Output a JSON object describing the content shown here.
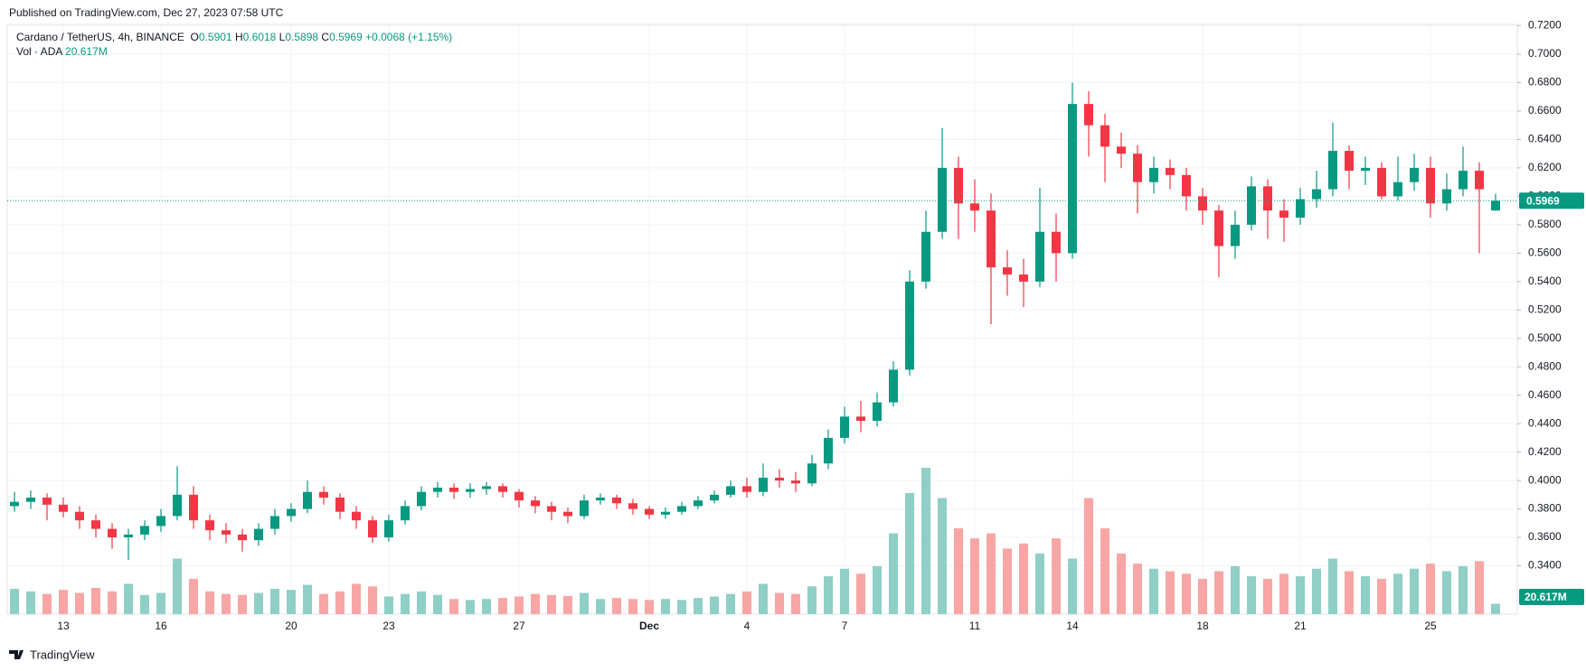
{
  "published": "Published on TradingView.com, Dec 27, 2023 07:58 UTC",
  "footer": {
    "brand": "TradingView"
  },
  "chart_data": {
    "type": "candlestick",
    "title": "Cardano / TetherUS, 4h, BINANCE",
    "legend": {
      "o": "O",
      "open": "0.5901",
      "h": "H",
      "high": "0.6018",
      "l": "L",
      "low": "0.5898",
      "c": "C",
      "close": "0.5969",
      "change": "+0.0068 (+1.15%)",
      "vol_title": "Vol · ADA",
      "vol": "20.617M"
    },
    "up_color": "#089981",
    "down_color": "#f23645",
    "up_volume_color": "#8fcfc6",
    "down_volume_color": "#f7a6a5",
    "grid": true,
    "ylim": [
      0.306,
      0.721
    ],
    "yticks": [
      {
        "value": 0.34,
        "label": "0.3400"
      },
      {
        "value": 0.36,
        "label": "0.3600"
      },
      {
        "value": 0.38,
        "label": "0.3800"
      },
      {
        "value": 0.4,
        "label": "0.4000"
      },
      {
        "value": 0.42,
        "label": "0.4200"
      },
      {
        "value": 0.44,
        "label": "0.4400"
      },
      {
        "value": 0.46,
        "label": "0.4600"
      },
      {
        "value": 0.48,
        "label": "0.4800"
      },
      {
        "value": 0.5,
        "label": "0.5000"
      },
      {
        "value": 0.52,
        "label": "0.5200"
      },
      {
        "value": 0.54,
        "label": "0.5400"
      },
      {
        "value": 0.56,
        "label": "0.5600"
      },
      {
        "value": 0.58,
        "label": "0.5800"
      },
      {
        "value": 0.6,
        "label": "0.6000"
      },
      {
        "value": 0.62,
        "label": "0.6200"
      },
      {
        "value": 0.64,
        "label": "0.6400"
      },
      {
        "value": 0.66,
        "label": "0.6600"
      },
      {
        "value": 0.68,
        "label": "0.6800"
      },
      {
        "value": 0.7,
        "label": "0.7000"
      },
      {
        "value": 0.72,
        "label": "0.7200"
      }
    ],
    "categories": [
      null,
      null,
      null,
      "13",
      null,
      null,
      null,
      null,
      null,
      "16",
      null,
      null,
      null,
      null,
      null,
      null,
      null,
      "20",
      null,
      null,
      null,
      null,
      null,
      "23",
      null,
      null,
      null,
      null,
      null,
      null,
      null,
      "27",
      null,
      null,
      null,
      null,
      null,
      null,
      null,
      "Dec",
      null,
      null,
      null,
      null,
      null,
      "4",
      null,
      null,
      null,
      null,
      null,
      "7",
      null,
      null,
      null,
      null,
      null,
      null,
      null,
      "11",
      null,
      null,
      null,
      null,
      null,
      "14",
      null,
      null,
      null,
      null,
      null,
      null,
      null,
      "18",
      null,
      null,
      null,
      null,
      null,
      "21",
      null,
      null,
      null,
      null,
      null,
      null,
      null,
      "25",
      null,
      null,
      null,
      null
    ],
    "open": [
      0.382,
      0.385,
      0.388,
      0.383,
      0.378,
      0.372,
      0.366,
      0.36,
      0.362,
      0.368,
      0.375,
      0.39,
      0.372,
      0.365,
      0.362,
      0.358,
      0.366,
      0.375,
      0.38,
      0.392,
      0.388,
      0.378,
      0.372,
      0.36,
      0.372,
      0.382,
      0.392,
      0.395,
      0.392,
      0.394,
      0.396,
      0.392,
      0.386,
      0.382,
      0.378,
      0.375,
      0.386,
      0.388,
      0.384,
      0.38,
      0.376,
      0.378,
      0.382,
      0.386,
      0.39,
      0.396,
      0.392,
      0.402,
      0.4,
      0.398,
      0.412,
      0.43,
      0.445,
      0.442,
      0.455,
      0.478,
      0.54,
      0.575,
      0.62,
      0.595,
      0.59,
      0.55,
      0.545,
      0.54,
      0.575,
      0.56,
      0.665,
      0.65,
      0.635,
      0.63,
      0.61,
      0.62,
      0.615,
      0.6,
      0.59,
      0.565,
      0.58,
      0.607,
      0.59,
      0.585,
      0.598,
      0.605,
      0.632,
      0.618,
      0.62,
      0.6,
      0.61,
      0.62,
      0.595,
      0.605,
      0.618,
      0.5901
    ],
    "high": [
      0.392,
      0.393,
      0.391,
      0.388,
      0.382,
      0.376,
      0.37,
      0.366,
      0.372,
      0.38,
      0.41,
      0.396,
      0.376,
      0.37,
      0.366,
      0.37,
      0.38,
      0.384,
      0.4,
      0.396,
      0.391,
      0.382,
      0.375,
      0.376,
      0.386,
      0.396,
      0.399,
      0.398,
      0.398,
      0.399,
      0.398,
      0.394,
      0.389,
      0.385,
      0.381,
      0.39,
      0.391,
      0.39,
      0.387,
      0.382,
      0.381,
      0.385,
      0.389,
      0.393,
      0.4,
      0.402,
      0.412,
      0.408,
      0.406,
      0.418,
      0.436,
      0.452,
      0.456,
      0.462,
      0.484,
      0.548,
      0.59,
      0.648,
      0.628,
      0.612,
      0.602,
      0.562,
      0.556,
      0.606,
      0.588,
      0.68,
      0.674,
      0.658,
      0.645,
      0.636,
      0.628,
      0.626,
      0.62,
      0.606,
      0.594,
      0.59,
      0.614,
      0.612,
      0.598,
      0.606,
      0.618,
      0.652,
      0.636,
      0.628,
      0.624,
      0.628,
      0.63,
      0.628,
      0.616,
      0.635,
      0.624,
      0.6018
    ],
    "low": [
      0.378,
      0.38,
      0.372,
      0.374,
      0.366,
      0.36,
      0.352,
      0.344,
      0.358,
      0.364,
      0.372,
      0.366,
      0.358,
      0.356,
      0.35,
      0.354,
      0.362,
      0.371,
      0.377,
      0.383,
      0.373,
      0.366,
      0.356,
      0.357,
      0.369,
      0.379,
      0.388,
      0.387,
      0.388,
      0.39,
      0.388,
      0.381,
      0.377,
      0.372,
      0.37,
      0.373,
      0.383,
      0.38,
      0.376,
      0.373,
      0.373,
      0.376,
      0.38,
      0.384,
      0.388,
      0.388,
      0.389,
      0.395,
      0.392,
      0.396,
      0.408,
      0.426,
      0.434,
      0.438,
      0.452,
      0.474,
      0.535,
      0.57,
      0.57,
      0.575,
      0.51,
      0.53,
      0.522,
      0.536,
      0.54,
      0.556,
      0.628,
      0.61,
      0.62,
      0.588,
      0.602,
      0.605,
      0.59,
      0.58,
      0.543,
      0.556,
      0.576,
      0.57,
      0.568,
      0.58,
      0.592,
      0.6,
      0.605,
      0.608,
      0.598,
      0.597,
      0.604,
      0.585,
      0.59,
      0.6,
      0.56,
      0.5898
    ],
    "close": [
      0.385,
      0.388,
      0.383,
      0.378,
      0.372,
      0.366,
      0.36,
      0.362,
      0.368,
      0.375,
      0.39,
      0.372,
      0.365,
      0.362,
      0.358,
      0.366,
      0.375,
      0.38,
      0.392,
      0.388,
      0.378,
      0.372,
      0.36,
      0.372,
      0.382,
      0.392,
      0.395,
      0.392,
      0.394,
      0.396,
      0.392,
      0.386,
      0.382,
      0.378,
      0.375,
      0.386,
      0.388,
      0.384,
      0.38,
      0.376,
      0.378,
      0.382,
      0.386,
      0.39,
      0.396,
      0.392,
      0.402,
      0.4,
      0.398,
      0.412,
      0.43,
      0.445,
      0.442,
      0.455,
      0.478,
      0.54,
      0.575,
      0.62,
      0.595,
      0.59,
      0.55,
      0.545,
      0.54,
      0.575,
      0.56,
      0.665,
      0.65,
      0.635,
      0.63,
      0.61,
      0.62,
      0.615,
      0.6,
      0.59,
      0.565,
      0.58,
      0.607,
      0.59,
      0.585,
      0.598,
      0.605,
      0.632,
      0.618,
      0.62,
      0.6,
      0.61,
      0.62,
      0.595,
      0.605,
      0.618,
      0.605,
      0.5969
    ],
    "volume": [
      50,
      45,
      40,
      48,
      42,
      52,
      45,
      60,
      38,
      42,
      110,
      70,
      45,
      40,
      38,
      42,
      50,
      48,
      58,
      40,
      45,
      60,
      55,
      35,
      40,
      45,
      38,
      30,
      28,
      30,
      32,
      35,
      40,
      38,
      36,
      42,
      30,
      32,
      30,
      28,
      30,
      28,
      32,
      35,
      40,
      45,
      60,
      42,
      40,
      55,
      75,
      90,
      80,
      95,
      160,
      240,
      290,
      230,
      170,
      150,
      160,
      130,
      140,
      120,
      150,
      110,
      230,
      170,
      120,
      100,
      90,
      85,
      80,
      70,
      85,
      95,
      75,
      70,
      80,
      75,
      90,
      110,
      85,
      75,
      70,
      80,
      90,
      100,
      85,
      95,
      105,
      20.617
    ]
  }
}
